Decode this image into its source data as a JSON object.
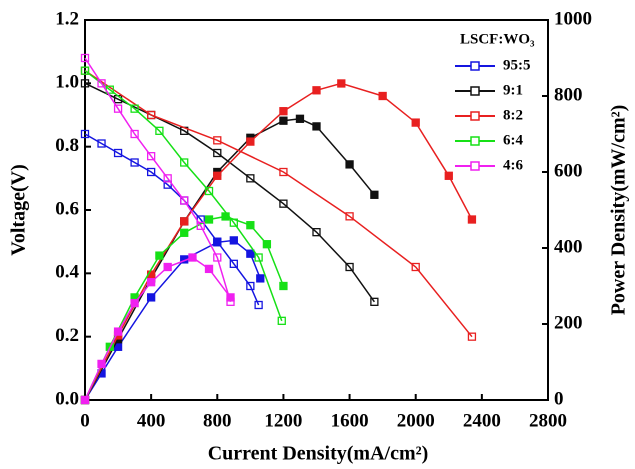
{
  "chart_data": {
    "type": "line",
    "x_label": "Current Density(mA/cm²)",
    "y_label": "Voltage(V)",
    "y2_label": "Power Density(mW/cm²)",
    "legend_title": "LSCF:WO₃",
    "legend": "upper right",
    "xlim": [
      0,
      2800
    ],
    "xticks": [
      0,
      400,
      800,
      1200,
      1600,
      2000,
      2400,
      2800
    ],
    "ylim": [
      0,
      1.2
    ],
    "yticks": [
      {
        "value": 0,
        "label": "0.0"
      },
      0.2,
      0.4,
      0.6,
      0.8,
      {
        "value": 1,
        "label": "1.0"
      },
      1.2
    ],
    "y2lim": [
      0,
      1000
    ],
    "y2ticks": [
      0,
      200,
      400,
      600,
      800,
      1000
    ],
    "series": [
      {
        "name": "95:5",
        "color": "#1515e0",
        "x": [
          0,
          100,
          200,
          300,
          400,
          500,
          600,
          700,
          800,
          900,
          1000,
          1050
        ],
        "values": [
          0.84,
          0.81,
          0.78,
          0.75,
          0.72,
          0.68,
          0.63,
          0.57,
          0.5,
          0.43,
          0.36,
          0.3
        ],
        "power": {
          "axis": "y2",
          "x": [
            0,
            100,
            200,
            400,
            600,
            800,
            900,
            1000,
            1060
          ],
          "values": [
            0,
            70,
            140,
            270,
            370,
            415,
            420,
            385,
            320
          ]
        }
      },
      {
        "name": "9:1",
        "color": "#111111",
        "x": [
          0,
          200,
          400,
          600,
          800,
          1000,
          1200,
          1400,
          1600,
          1750
        ],
        "values": [
          1.0,
          0.95,
          0.9,
          0.85,
          0.78,
          0.7,
          0.62,
          0.53,
          0.42,
          0.31
        ],
        "power": {
          "axis": "y2",
          "x": [
            0,
            200,
            400,
            600,
            800,
            1000,
            1200,
            1300,
            1400,
            1600,
            1750
          ],
          "values": [
            0,
            160,
            320,
            470,
            600,
            690,
            735,
            740,
            720,
            620,
            540
          ]
        }
      },
      {
        "name": "8:2",
        "color": "#e82020",
        "x": [
          0,
          400,
          800,
          1200,
          1600,
          2000,
          2340
        ],
        "values": [
          1.04,
          0.9,
          0.82,
          0.72,
          0.58,
          0.42,
          0.2
        ],
        "power": {
          "axis": "y2",
          "x": [
            0,
            200,
            400,
            600,
            800,
            1000,
            1200,
            1400,
            1550,
            1800,
            2000,
            2200,
            2340
          ],
          "values": [
            0,
            170,
            330,
            470,
            590,
            680,
            760,
            815,
            833,
            800,
            730,
            590,
            475
          ]
        }
      },
      {
        "name": "6:4",
        "color": "#16e016",
        "x": [
          0,
          150,
          300,
          450,
          600,
          750,
          900,
          1050,
          1190
        ],
        "values": [
          1.04,
          0.98,
          0.92,
          0.85,
          0.75,
          0.66,
          0.56,
          0.45,
          0.25
        ],
        "power": {
          "axis": "y2",
          "x": [
            0,
            150,
            300,
            450,
            600,
            750,
            850,
            1000,
            1100,
            1200
          ],
          "values": [
            0,
            140,
            270,
            380,
            440,
            475,
            483,
            460,
            410,
            300
          ]
        }
      },
      {
        "name": "4:6",
        "color": "#f020f0",
        "x": [
          0,
          100,
          200,
          300,
          400,
          500,
          600,
          700,
          800,
          880
        ],
        "values": [
          1.08,
          1.0,
          0.92,
          0.84,
          0.77,
          0.7,
          0.63,
          0.55,
          0.45,
          0.31
        ],
        "power": {
          "axis": "y2",
          "x": [
            0,
            100,
            200,
            300,
            400,
            500,
            650,
            750,
            880
          ],
          "values": [
            0,
            95,
            180,
            255,
            310,
            350,
            375,
            345,
            270
          ]
        }
      }
    ]
  }
}
